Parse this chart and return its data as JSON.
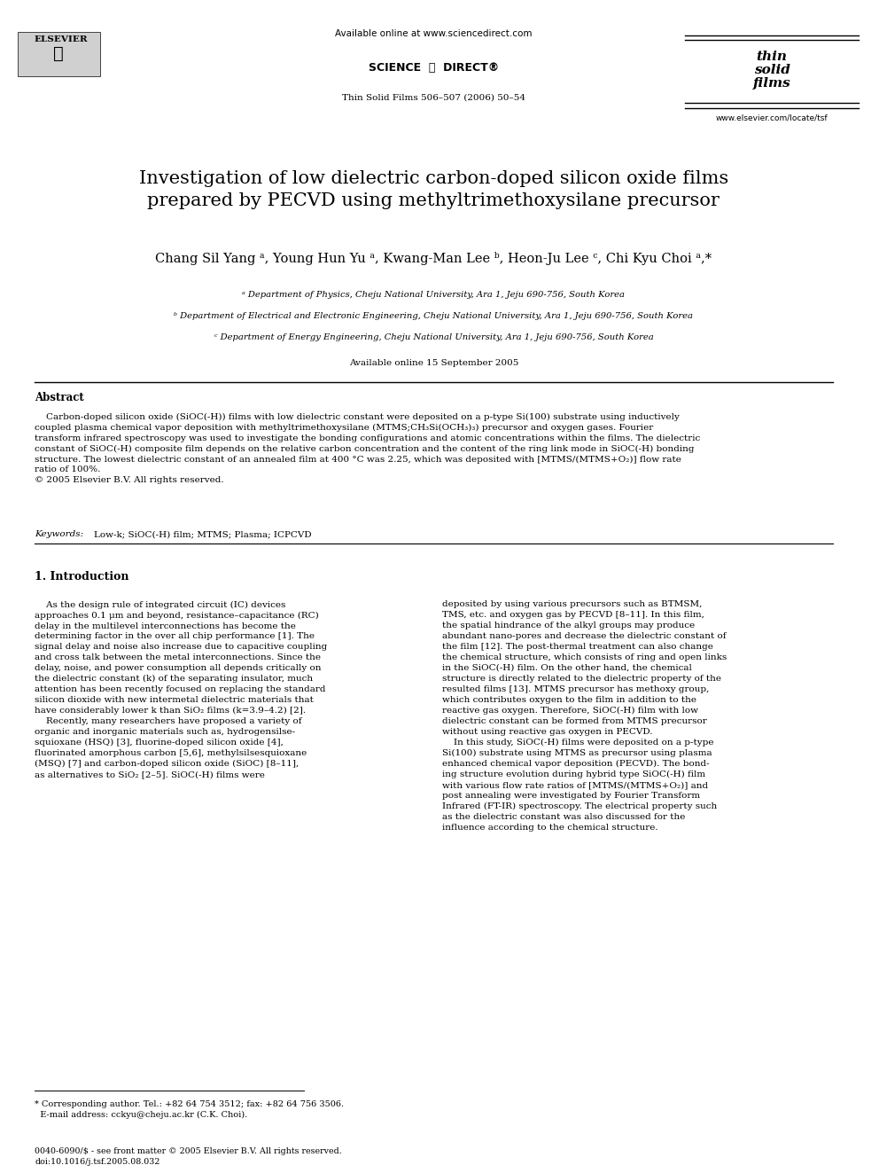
{
  "page_width": 9.92,
  "page_height": 13.23,
  "bg_color": "#ffffff",
  "header": {
    "available_online": "Available online at www.sciencedirect.com",
    "journal_info": "Thin Solid Films 506–507 (2006) 50–54",
    "website": "www.elsevier.com/locate/tsf"
  },
  "title": "Investigation of low dielectric carbon-doped silicon oxide films\nprepared by PECVD using methyltrimethoxysilane precursor",
  "authors": "Chang Sil Yang ᵃ, Young Hun Yu ᵃ, Kwang-Man Lee ᵇ, Heon-Ju Lee ᶜ, Chi Kyu Choi ᵃ,*",
  "affiliations": [
    "ᵃ Department of Physics, Cheju National University, Ara 1, Jeju 690-756, South Korea",
    "ᵇ Department of Electrical and Electronic Engineering, Cheju National University, Ara 1, Jeju 690-756, South Korea",
    "ᶜ Department of Energy Engineering, Cheju National University, Ara 1, Jeju 690-756, South Korea"
  ],
  "available_online_date": "Available online 15 September 2005",
  "abstract_title": "Abstract",
  "abstract_text": "Carbon-doped silicon oxide (SiOC(-H)) films with low dielectric constant were deposited on a p-type Si(100) substrate using inductively coupled plasma chemical vapor deposition with methyltrimethoxysilane (MTMS;CH₃Si(OCH₃)₃) precursor and oxygen gases. Fourier transform infrared spectroscopy was used to investigate the bonding configurations and atomic concentrations within the films. The dielectric constant of SiOC(-H) composite film depends on the relative carbon concentration and the content of the ring link mode in SiOC(-H) bonding structure. The lowest dielectric constant of an annealed film at 400 °C was 2.25, which was deposited with [MTMS/(MTMS+O₂)] flow rate ratio of 100%.\n© 2005 Elsevier B.V. All rights reserved.",
  "keywords": "Keywords: Low-k; SiOC(-H) film; MTMS; Plasma; ICPCVD",
  "section1_title": "1. Introduction",
  "col1_intro": "As the design rule of integrated circuit (IC) devices approaches 0.1 μm and beyond, resistance–capacitance (RC) delay in the multilevel interconnections has become the determining factor in the over all chip performance [1]. The signal delay and noise also increase due to capacitive coupling and cross talk between the metal interconnections. Since the delay, noise, and power consumption all depends critically on the dielectric constant (k) of the separating insulator, much attention has been recently focused on replacing the standard silicon dioxide with new intermetal dielectric materials that have considerably lower k than SiO₂ films (k=3.9–4.2) [2].\n    Recently, many researchers have proposed a variety of organic and inorganic materials such as, hydrogensilsesquioxane (HSQ) [3], fluorine-doped silicon oxide [4], fluorinated amorphous carbon [5,6], methylsilsesquioxane (MSQ) [7] and carbon-doped silicon oxide (SiOC) [8–11], as alternatives to SiO₂ [2–5]. SiOC(-H) films were",
  "col2_intro": "deposited by using various precursors such as BTMSM, TMS, etc. and oxygen gas by PECVD [8–11]. In this film, the spatial hindrance of the alkyl groups may produce abundant nano-pores and decrease the dielectric constant of the film [12]. The post-thermal treatment can also change the chemical structure, which consists of ring and open links in the SiOC(-H) film. On the other hand, the chemical structure is directly related to the dielectric property of the resulted films [13]. MTMS precursor has methoxy group, which contributes oxygen to the film in addition to the reactive gas oxygen. Therefore, SiOC(-H) film with low dielectric constant can be formed from MTMS precursor without using reactive gas oxygen in PECVD.\n    In this study, SiOC(-H) films were deposited on a p-type Si(100) substrate using MTMS as precursor using plasma enhanced chemical vapor deposition (PECVD). The bonding structure evolution during hybrid type SiOC(-H) film with various flow rate ratios of [MTMS/(MTMS+O₂)] and post annealing were investigated by Fourier Transform Infrared (FT-IR) spectroscopy. The electrical property such as the dielectric constant was also discussed for the influence according to the chemical structure.",
  "footnote": "* Corresponding author. Tel.: +82 64 754 3512; fax: +82 64 756 3506.\n  E-mail address: cckyu@cheju.ac.kr (C.K. Choi).",
  "footer": "0040-6090/$ - see front matter © 2005 Elsevier B.V. All rights reserved.\ndoi:10.1016/j.tsf.2005.08.032"
}
